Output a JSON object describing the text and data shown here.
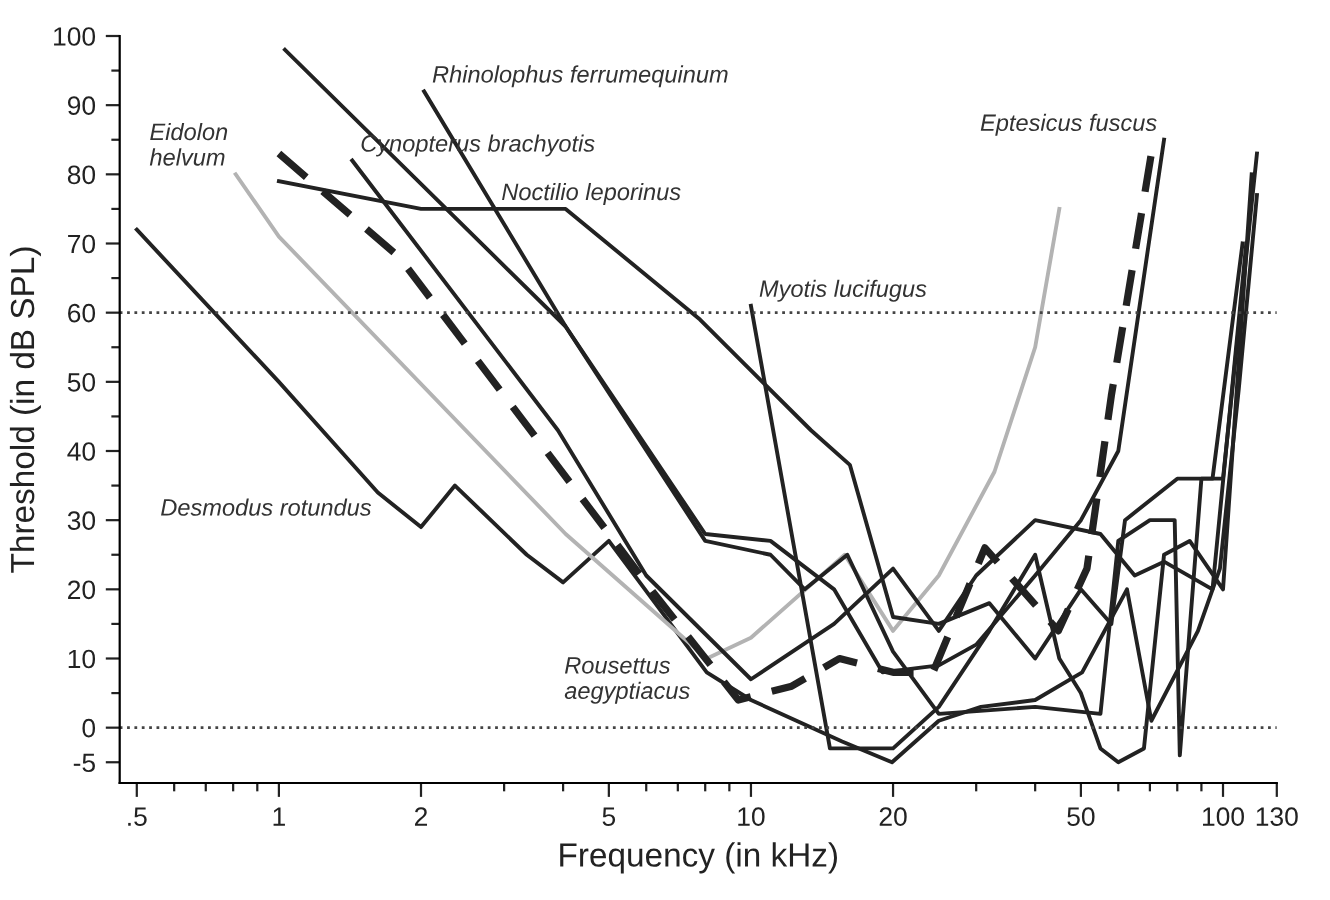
{
  "chart_data": {
    "type": "line",
    "xlabel": "Frequency (in kHz)",
    "ylabel": "Threshold (in dB SPL)",
    "log": "x",
    "xlim": [
      0.46,
      130
    ],
    "ylim": [
      -8,
      100
    ],
    "xticks": [
      {
        "value": 0.5,
        "label": ".5"
      },
      {
        "value": 0.6,
        "label": null
      },
      {
        "value": 0.7,
        "label": null
      },
      {
        "value": 0.8,
        "label": null
      },
      {
        "value": 0.9,
        "label": null
      },
      1,
      2,
      {
        "value": 3,
        "label": null
      },
      {
        "value": 4,
        "label": null
      },
      5,
      {
        "value": 6,
        "label": null
      },
      {
        "value": 7,
        "label": null
      },
      {
        "value": 8,
        "label": null
      },
      {
        "value": 9,
        "label": null
      },
      10,
      20,
      {
        "value": 30,
        "label": null
      },
      {
        "value": 40,
        "label": null
      },
      50,
      {
        "value": 60,
        "label": null
      },
      {
        "value": 70,
        "label": null
      },
      {
        "value": 80,
        "label": null
      },
      {
        "value": 90,
        "label": null
      },
      100,
      130
    ],
    "yticks": [
      -5,
      0,
      {
        "value": 5,
        "label": null
      },
      10,
      {
        "value": 15,
        "label": null
      },
      20,
      {
        "value": 25,
        "label": null
      },
      30,
      {
        "value": 35,
        "label": null
      },
      40,
      {
        "value": 45,
        "label": null
      },
      50,
      {
        "value": 55,
        "label": null
      },
      60,
      {
        "value": 65,
        "label": null
      },
      70,
      {
        "value": 75,
        "label": null
      },
      80,
      {
        "value": 85,
        "label": null
      },
      90,
      {
        "value": 95,
        "label": null
      },
      100
    ],
    "grid": false,
    "legend": false,
    "marker": "none",
    "ref_lines": [
      {
        "axis": "y",
        "value": 60,
        "line_style": "dotted",
        "color": "#444444"
      },
      {
        "axis": "y",
        "value": 0,
        "line_style": "dotted",
        "color": "#444444"
      }
    ],
    "series": [
      {
        "name": "Desmodus rotundus",
        "color": "#222222",
        "line_style": "solid",
        "x": [
          0.5,
          1,
          1.62,
          2.0,
          2.36,
          3.35,
          4.0,
          5.0,
          8.06,
          10,
          15.6,
          19.9,
          25,
          30.7,
          40,
          50.3,
          62.6,
          70.5,
          88.5,
          98.5,
          108,
          118
        ],
        "values": [
          72,
          50,
          34,
          29,
          35,
          25,
          21,
          27,
          8,
          4,
          -2,
          -5,
          1,
          3,
          4,
          8,
          20,
          1,
          14,
          23,
          49,
          77
        ]
      },
      {
        "name": "Eidolon\nhelvum",
        "color": "#b3b3b3",
        "line_style": "solid",
        "x": [
          0.81,
          1,
          4.05,
          8.07,
          10,
          15.8,
          20,
          25,
          32.8,
          40,
          45
        ],
        "values": [
          80,
          71,
          28,
          10,
          13,
          25,
          14,
          22,
          37,
          55,
          75
        ]
      },
      {
        "name": "Rousettus\naegyptiacus",
        "color": "#222222",
        "line_style": "dashed",
        "x": [
          1.0,
          1.8,
          6.3,
          9.4,
          12.2,
          15.4,
          20,
          24.3,
          31.3,
          44.8,
          51.5,
          58,
          70.5
        ],
        "values": [
          83,
          68,
          19,
          4,
          6,
          10,
          8,
          8,
          26,
          14,
          23,
          48,
          83
        ]
      },
      {
        "name": "Noctilio leporinus",
        "color": "#222222",
        "line_style": "solid",
        "x": [
          1.0,
          2.0,
          4.05,
          7.8,
          13.4,
          16.2,
          20,
          25,
          32,
          40,
          50,
          58,
          62,
          80,
          95,
          110
        ],
        "values": [
          79,
          75,
          75,
          59,
          43,
          38,
          16,
          15,
          18,
          10,
          20,
          15,
          30,
          36,
          36,
          70
        ]
      },
      {
        "name": "Eptesicus fuscus",
        "color": "#222222",
        "line_style": "solid",
        "x": [
          1.03,
          4.05,
          8,
          11,
          15,
          19,
          25,
          30,
          40,
          50,
          60,
          75
        ],
        "values": [
          98,
          58,
          28,
          27,
          20,
          8,
          9,
          12,
          22,
          30,
          40,
          85
        ]
      },
      {
        "name": "Cynopterus brachyotis",
        "color": "#222222",
        "line_style": "solid",
        "x": [
          1.43,
          3.9,
          6,
          10,
          15,
          20,
          25,
          30,
          40,
          55,
          65,
          75,
          95,
          112
        ],
        "values": [
          82,
          43,
          22,
          7,
          15,
          23,
          14,
          22,
          30,
          28,
          22,
          24,
          20,
          70
        ]
      },
      {
        "name": "Rhinolophus ferrumequinum",
        "color": "#222222",
        "line_style": "solid",
        "x": [
          2.03,
          4.05,
          8,
          11,
          13,
          16,
          20,
          25,
          40,
          55,
          60,
          70,
          79,
          81,
          90,
          100,
          118
        ],
        "values": [
          92,
          58,
          27,
          25,
          20,
          25,
          11,
          2,
          3,
          2,
          27,
          30,
          30,
          -4,
          36,
          36,
          83
        ]
      },
      {
        "name": "Myotis lucifugus",
        "color": "#222222",
        "line_style": "solid",
        "x": [
          10,
          14.7,
          20,
          25,
          32,
          40,
          45,
          50,
          55,
          60,
          68,
          75,
          85,
          100,
          115
        ],
        "values": [
          61,
          -3,
          -3,
          3,
          14,
          25,
          10,
          5,
          -3,
          -5,
          -3,
          25,
          27,
          20,
          80
        ]
      }
    ]
  }
}
